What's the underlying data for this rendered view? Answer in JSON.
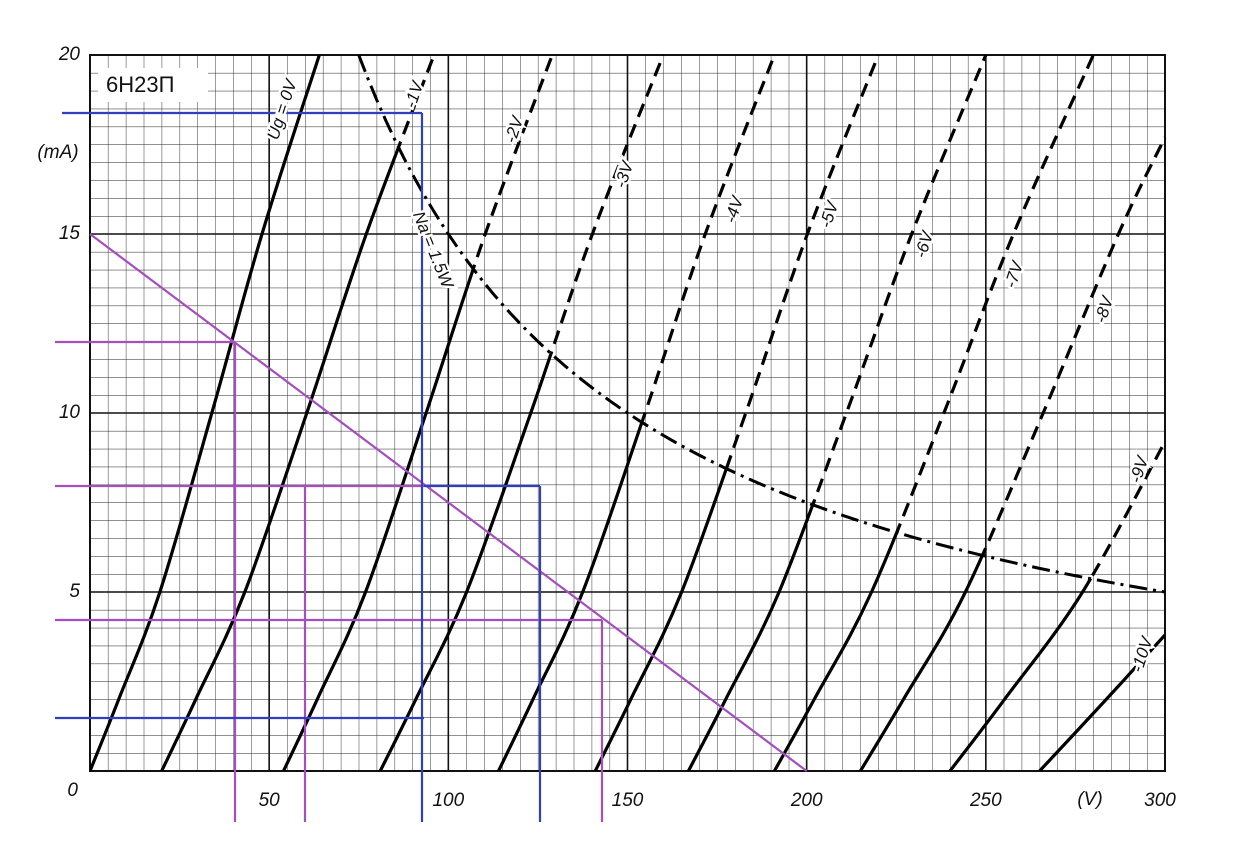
{
  "chart_data": {
    "type": "line",
    "title": "6H23П",
    "xlabel": "(V)",
    "ylabel": "(mA)",
    "xlim": [
      0,
      300
    ],
    "ylim": [
      0,
      20
    ],
    "xticks": [
      50,
      100,
      150,
      200,
      250,
      300
    ],
    "yticks": [
      0,
      5,
      10,
      15,
      20
    ],
    "grid": true,
    "series": [
      {
        "name": "Ug = 0V",
        "color": "#000000",
        "x": [
          0,
          8,
          19.5,
          34,
          48,
          64
        ],
        "values": [
          0,
          2,
          5,
          10,
          15,
          20
        ]
      },
      {
        "name": "-1V",
        "color": "#000000",
        "x": [
          20,
          29.5,
          43.2,
          60.5,
          77.1,
          96
        ],
        "values": [
          0,
          2,
          5,
          10,
          15,
          20
        ]
      },
      {
        "name": "-2V",
        "color": "#000000",
        "x": [
          54,
          63.4,
          76.9,
          93.8,
          110.3,
          129
        ],
        "values": [
          0,
          2,
          5,
          10,
          15,
          20
        ]
      },
      {
        "name": "-3V",
        "color": "#000000",
        "x": [
          81,
          90.9,
          105.1,
          123,
          140.2,
          160
        ],
        "values": [
          0,
          2,
          5,
          10,
          15,
          20
        ]
      },
      {
        "name": "-4V",
        "color": "#000000",
        "x": [
          114,
          123.6,
          137.5,
          154.9,
          171.7,
          191
        ],
        "values": [
          0,
          2,
          5,
          10,
          15,
          20
        ]
      },
      {
        "name": "-5V",
        "color": "#000000",
        "x": [
          141,
          150.9,
          165.1,
          183,
          200.2,
          220
        ],
        "values": [
          0,
          2,
          5,
          10,
          15,
          20
        ]
      },
      {
        "name": "-6V",
        "color": "#000000",
        "x": [
          167,
          177.4,
          192.3,
          211.1,
          229.3,
          250
        ],
        "values": [
          0,
          2,
          5,
          10,
          15,
          20
        ]
      },
      {
        "name": "-7V",
        "color": "#000000",
        "x": [
          191,
          202.1,
          218.1,
          238.3,
          257.7,
          280
        ],
        "values": [
          0,
          2,
          5,
          10,
          15,
          20
        ]
      },
      {
        "name": "-8V",
        "color": "#000000",
        "x": [
          215,
          227,
          244.3,
          266,
          287,
          300
        ],
        "values": [
          0,
          2,
          5,
          10,
          15,
          17.7
        ]
      },
      {
        "name": "-9V",
        "color": "#000000",
        "x": [
          240,
          255.2,
          277,
          300
        ],
        "values": [
          0,
          2,
          5,
          9.2
        ]
      },
      {
        "name": "-10V",
        "color": "#000000",
        "x": [
          265,
          283.6,
          300
        ],
        "values": [
          0,
          2,
          3.8
        ]
      }
    ],
    "power_limit": {
      "label": "Na = 1.5W",
      "watts": 1.5,
      "color": "#000000"
    },
    "load_line": {
      "color": "#a64dbf",
      "x": [
        0,
        200
      ],
      "values": [
        15,
        0
      ]
    }
  }
}
